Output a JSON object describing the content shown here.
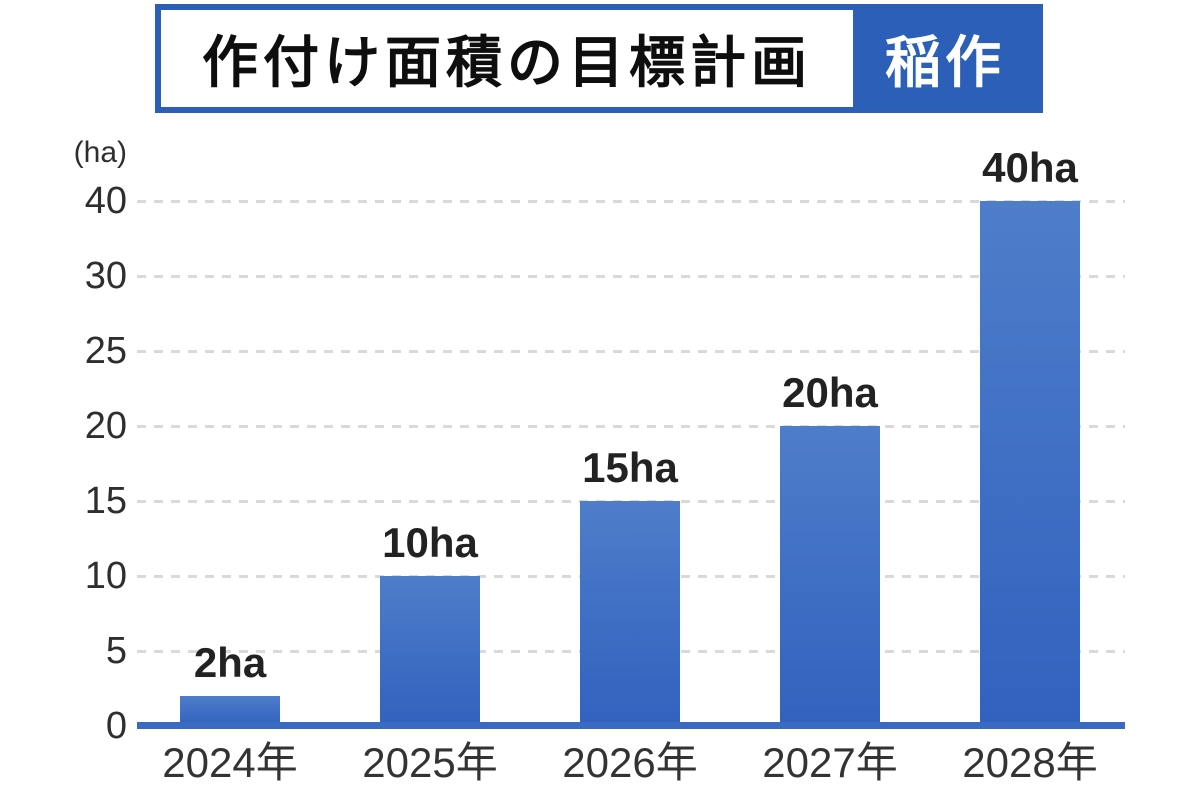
{
  "title": {
    "main": "作付け面積の目標計画",
    "badge": "稲作"
  },
  "colors": {
    "primary_blue": "#2c60b8",
    "axis_blue": "#3a6bc4",
    "bar_gradient_top": "#4e7dca",
    "bar_gradient_bottom": "#3162be",
    "gridline_gray": "#d9d9d9",
    "text_dark": "#222222"
  },
  "chart_data": {
    "type": "bar",
    "title": "作付け面積の目標計画（稲作）",
    "unit_label": "(ha)",
    "ylabel": "(ha)",
    "xlabel": "",
    "categories": [
      "2024年",
      "2025年",
      "2026年",
      "2027年",
      "2028年"
    ],
    "values": [
      2,
      10,
      15,
      20,
      40
    ],
    "bar_labels": [
      "2ha",
      "10ha",
      "15ha",
      "20ha",
      "40ha"
    ],
    "y_ticks": [
      0,
      5,
      10,
      15,
      20,
      25,
      30,
      40
    ],
    "ylim": [
      0,
      40
    ],
    "axis_scale_note": "y-axis compressed above 30: tick 40 sits one even step after 30 (no 35 tick)",
    "grid": "dashed horizontal gridlines at each y tick",
    "legend_position": "none"
  }
}
